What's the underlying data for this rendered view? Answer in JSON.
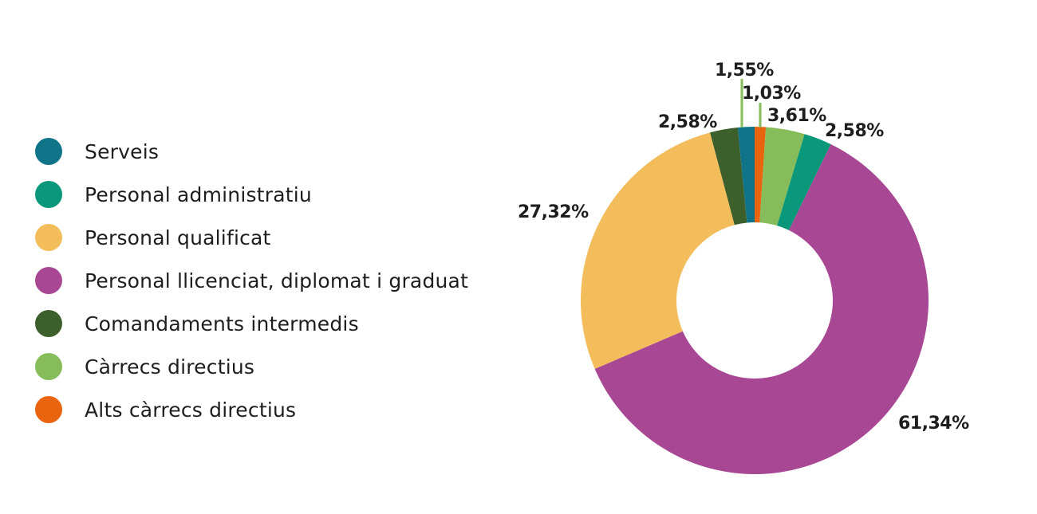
{
  "chart_data": {
    "type": "pie",
    "variant": "donut",
    "title": "",
    "legend_placement": "left",
    "categories": [
      "Serveis",
      "Personal administratiu",
      "Personal qualificat",
      "Personal llicenciat, diplomat i graduat",
      "Comandaments intermedis",
      "Càrrecs directius",
      "Alts càrrecs directius"
    ],
    "colors": [
      "#0f7488",
      "#0a977a",
      "#f2bd5a",
      "#a84794",
      "#3c5f2b",
      "#86bd5a",
      "#e9640f"
    ],
    "values": [
      1.55,
      2.58,
      27.32,
      61.34,
      2.58,
      3.61,
      1.03
    ],
    "value_labels": [
      "1,55%",
      "2,58%",
      "27,32%",
      "61,34%",
      "2,58%",
      "3,61%",
      "1,03%"
    ],
    "slice_order_clockwise_from_top": [
      6,
      5,
      1,
      3,
      2,
      4,
      0
    ]
  }
}
